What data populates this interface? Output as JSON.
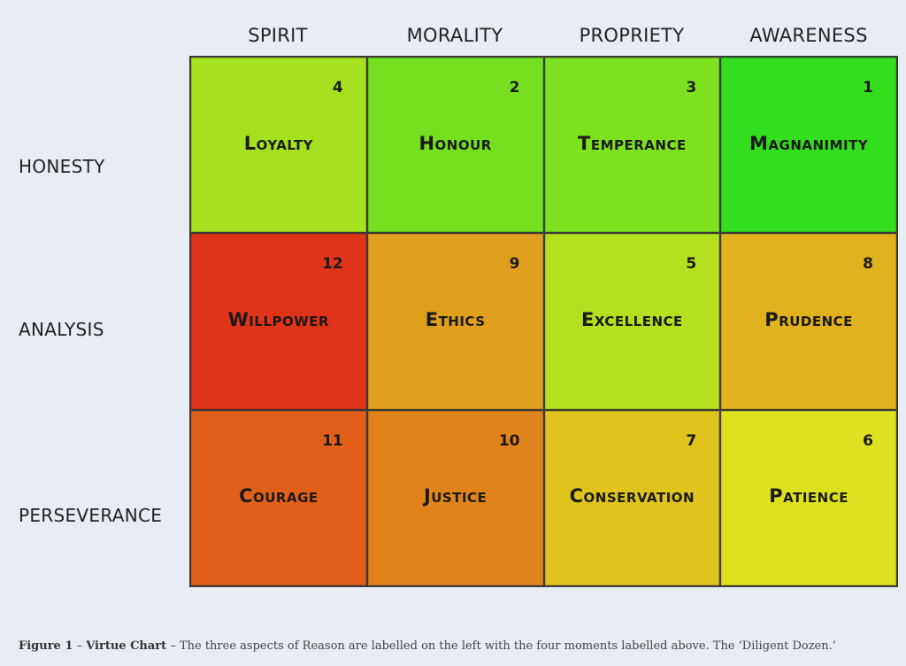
{
  "columns": [
    "SPIRIT",
    "MORALITY",
    "PROPRIETY",
    "AWARENESS"
  ],
  "rows": [
    "HONESTY",
    "ANALYSIS",
    "PERSEVERANCE"
  ],
  "cells": [
    {
      "name": "Loyalty",
      "number": "4",
      "color": "#a6e11f"
    },
    {
      "name": "Honour",
      "number": "2",
      "color": "#74e01f"
    },
    {
      "name": "Temperance",
      "number": "3",
      "color": "#7ee11f"
    },
    {
      "name": "Magnanimity",
      "number": "1",
      "color": "#33de1e"
    },
    {
      "name": "Willpower",
      "number": "12",
      "color": "#e0341a"
    },
    {
      "name": "Ethics",
      "number": "9",
      "color": "#e0a01e"
    },
    {
      "name": "Excellence",
      "number": "5",
      "color": "#b5e020"
    },
    {
      "name": "Prudence",
      "number": "8",
      "color": "#e0b21e"
    },
    {
      "name": "Courage",
      "number": "11",
      "color": "#e0601a"
    },
    {
      "name": "Justice",
      "number": "10",
      "color": "#e0831c"
    },
    {
      "name": "Conservation",
      "number": "7",
      "color": "#e0c41e"
    },
    {
      "name": "Patience",
      "number": "6",
      "color": "#dde11f"
    }
  ],
  "caption": {
    "figure_label": "Figure 1",
    "title": "Virtue Chart",
    "text": "The three aspects of Reason are labelled on the left with the four moments labelled above. The ‘Diligent Dozen.’"
  }
}
